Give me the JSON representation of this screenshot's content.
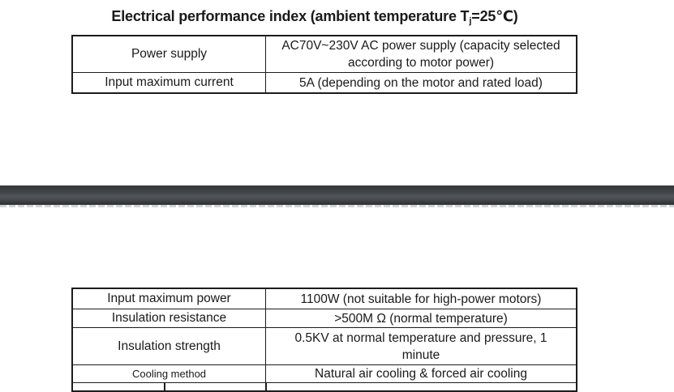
{
  "title": {
    "prefix": "Electrical performance index (ambient temperature T",
    "subscript": "j",
    "suffix": "=25℃)"
  },
  "tables": {
    "page1": {
      "rows": [
        {
          "label": "Power supply",
          "value": "AC70V~230V AC power supply (capacity selected according to motor power)"
        },
        {
          "label": "Input maximum current",
          "value": "5A (depending on the motor and rated load)"
        }
      ]
    },
    "page2": {
      "rows": [
        {
          "label": "Input maximum power",
          "value": "1100W (not suitable for high-power motors)"
        },
        {
          "label": "Insulation resistance",
          "value": ">500M Ω (normal temperature)"
        },
        {
          "label": "Insulation strength",
          "value": "0.5KV at normal temperature and pressure, 1 minute"
        },
        {
          "label": "Cooling method",
          "value": "Natural air cooling & forced air cooling"
        }
      ]
    }
  },
  "colors": {
    "page_background": "#ffffff",
    "text": "#1a1a1a",
    "table_border": "#1c1c1c",
    "separator_dark": "#303336",
    "separator_light": "#53565a",
    "page_edge_dash": "#d0d4d1"
  }
}
